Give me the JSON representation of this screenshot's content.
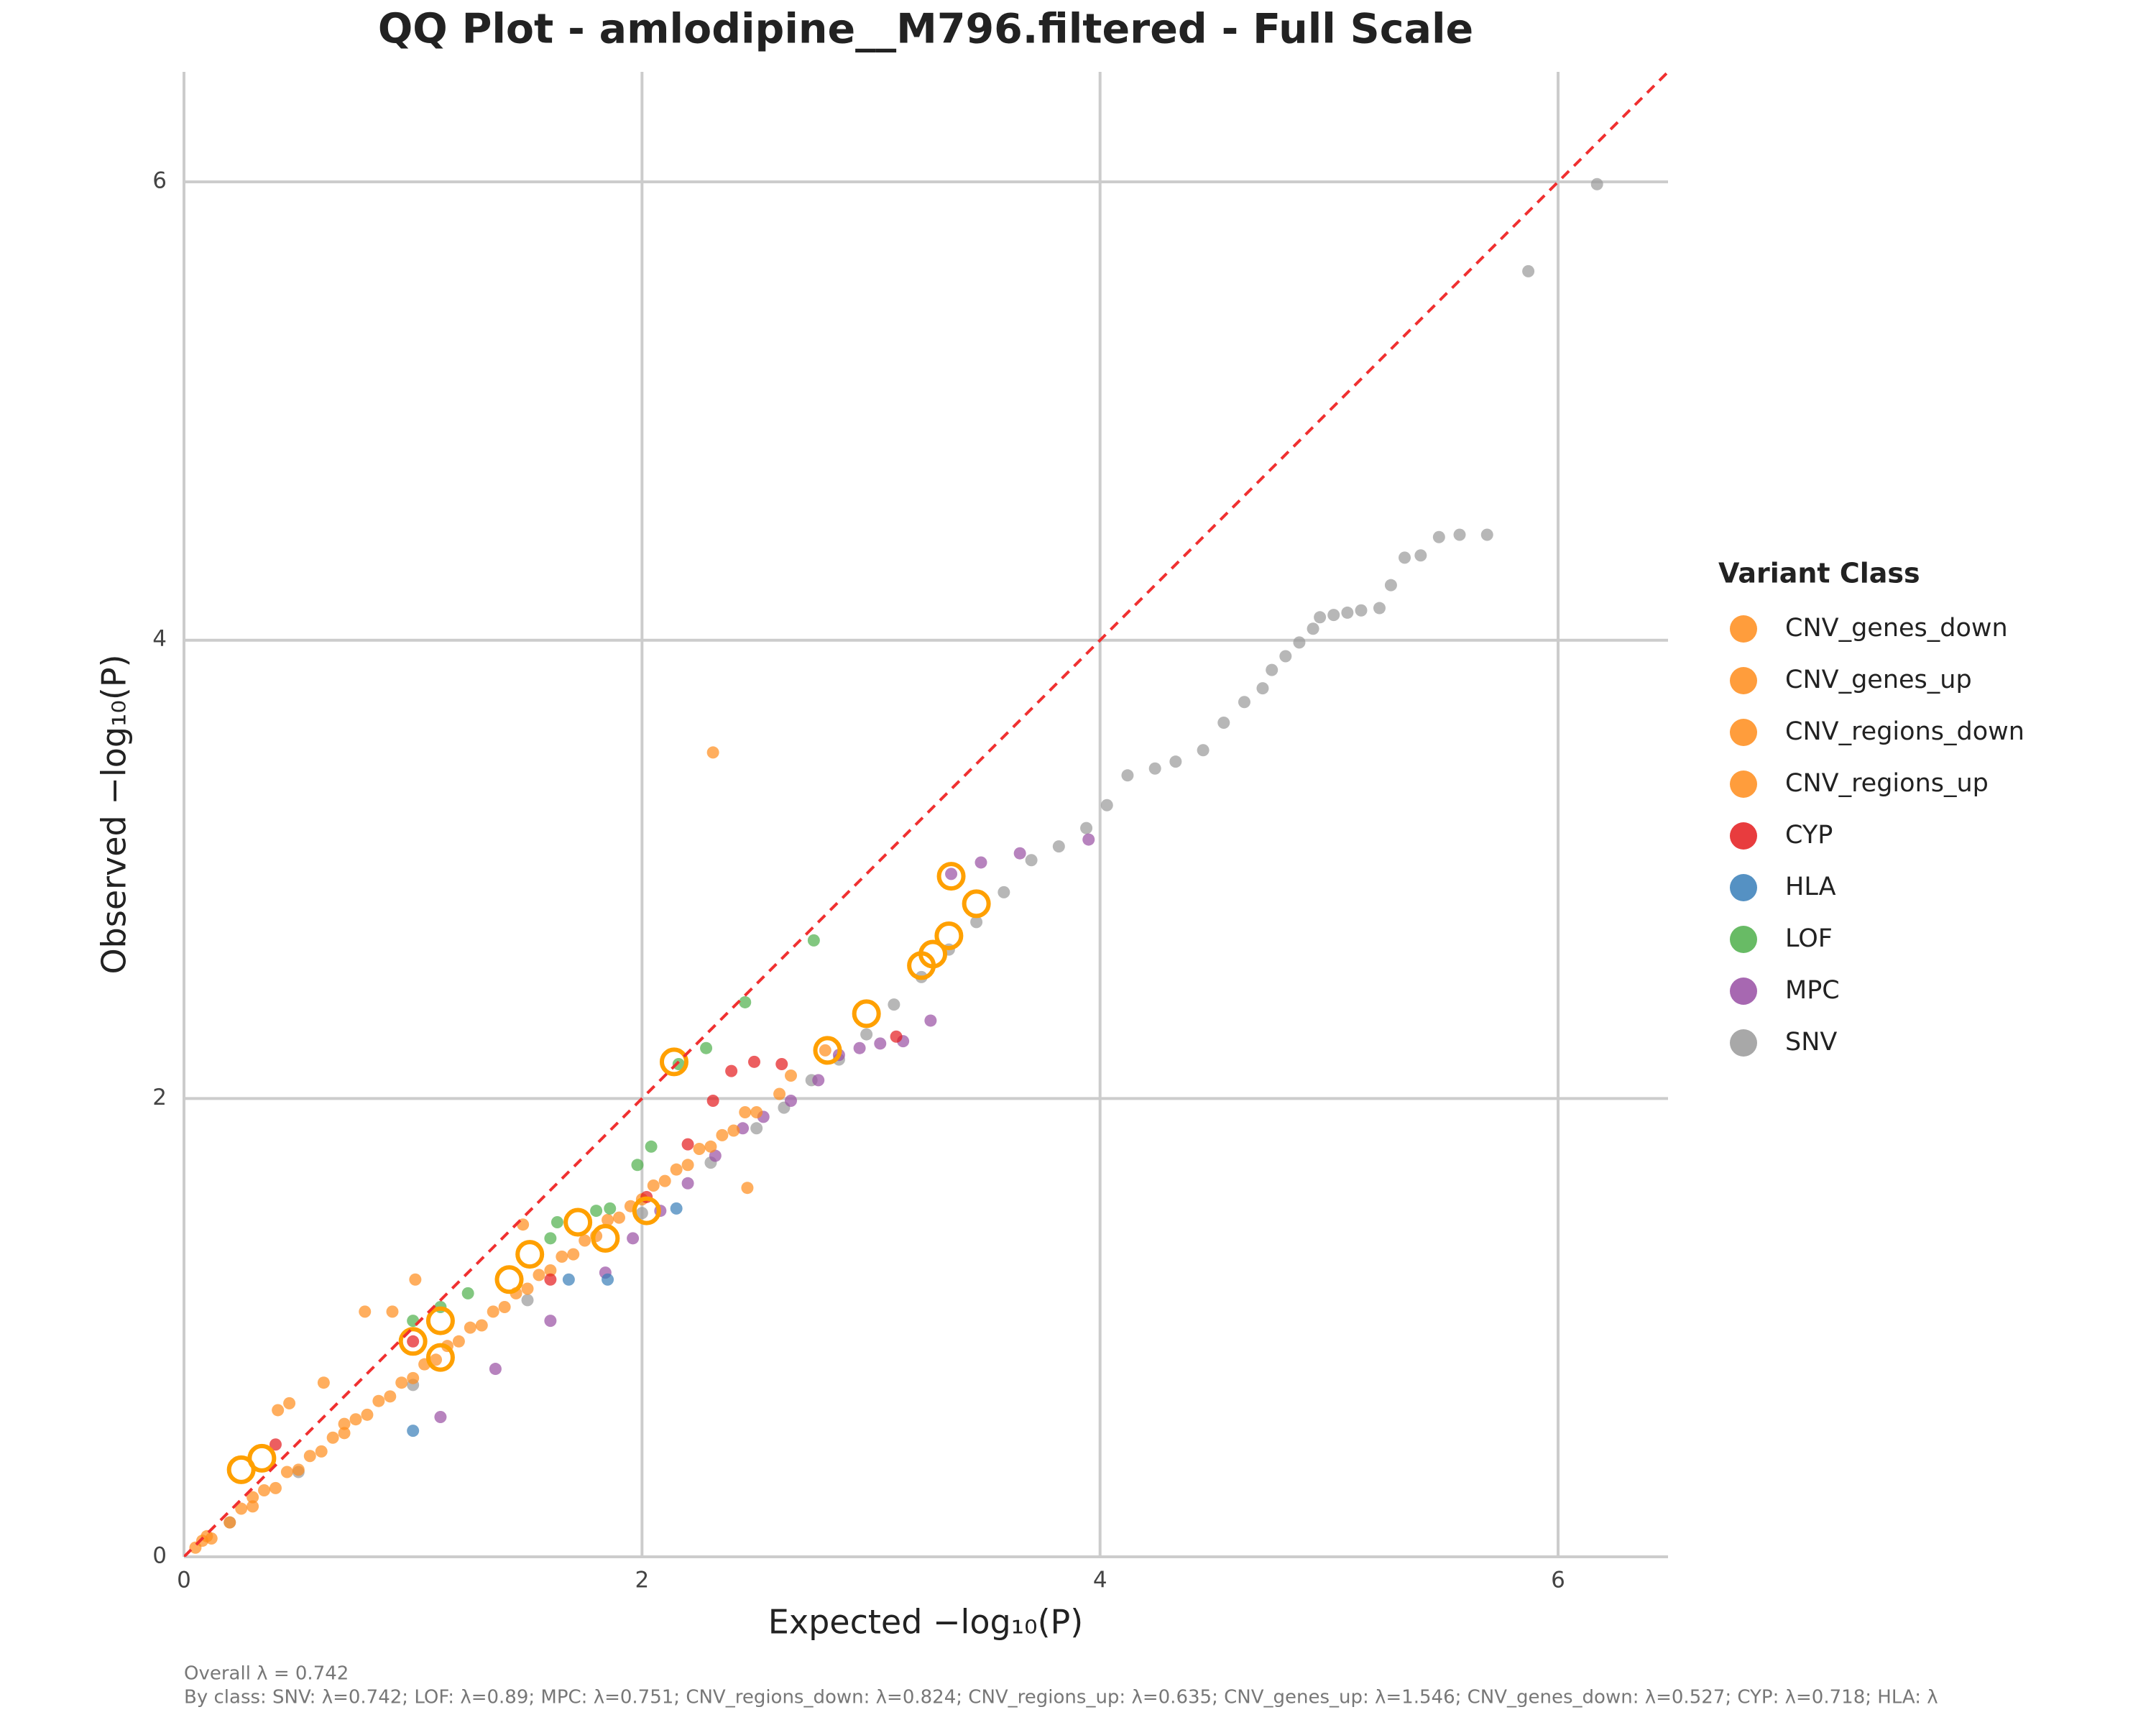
{
  "chart_data": {
    "type": "scatter",
    "title": "QQ Plot - amlodipine__M796.filtered - Full Scale",
    "x_label": "Expected −log₁₀(P)",
    "y_label": "Observed −log₁₀(P)",
    "legend_title": "Variant Class",
    "legend": "right",
    "grid": true,
    "diagonal": true,
    "diagonal_color": "#f03030",
    "xlim": [
      0,
      6.48
    ],
    "ylim": [
      0,
      6.48
    ],
    "xticks": [
      0,
      2,
      4,
      6
    ],
    "yticks": [
      0,
      2,
      4,
      6
    ],
    "notes": [
      "Overall λ = 0.742",
      "By class: SNV: λ=0.742; LOF: λ=0.89; MPC: λ=0.751; CNV_regions_down: λ=0.824; CNV_regions_up: λ=0.635; CNV_genes_up: λ=1.546; CNV_genes_down: λ=0.527; CYP: λ=0.718; HLA: λ"
    ],
    "series": [
      {
        "name": "SNV",
        "color": "#999999",
        "x": [
          6.17,
          5.87,
          5.69,
          5.57,
          5.48,
          5.4,
          5.33,
          5.27,
          5.22,
          5.14,
          5.08,
          5.02,
          4.96,
          4.93,
          4.87,
          4.81,
          4.75,
          4.71,
          4.63,
          4.54,
          4.45,
          4.33,
          4.24,
          4.12,
          4.03,
          3.94,
          3.82,
          3.7,
          3.58,
          3.46,
          3.34,
          3.22,
          3.1,
          2.98,
          2.86,
          2.74,
          2.62,
          2.5,
          2.3,
          2.0,
          1.5,
          1.0,
          0.5,
          0.2
        ],
        "y": [
          5.99,
          5.61,
          4.46,
          4.46,
          4.45,
          4.37,
          4.36,
          4.24,
          4.14,
          4.13,
          4.12,
          4.11,
          4.1,
          4.05,
          3.99,
          3.93,
          3.87,
          3.79,
          3.73,
          3.64,
          3.52,
          3.47,
          3.44,
          3.41,
          3.28,
          3.18,
          3.1,
          3.04,
          2.9,
          2.77,
          2.65,
          2.53,
          2.41,
          2.28,
          2.17,
          2.08,
          1.96,
          1.87,
          1.72,
          1.5,
          1.12,
          0.75,
          0.37,
          0.15
        ]
      },
      {
        "name": "MPC",
        "color": "#984ea3",
        "x": [
          3.95,
          3.65,
          3.48,
          3.35,
          3.26,
          3.14,
          3.04,
          2.95,
          2.86,
          2.77,
          2.65,
          2.53,
          2.44,
          2.32,
          2.2,
          2.08,
          1.96,
          1.84,
          1.6,
          1.36,
          1.12
        ],
        "y": [
          3.13,
          3.07,
          3.03,
          2.98,
          2.34,
          2.25,
          2.24,
          2.22,
          2.19,
          2.08,
          1.99,
          1.92,
          1.87,
          1.75,
          1.63,
          1.51,
          1.39,
          1.24,
          1.03,
          0.82,
          0.61
        ]
      },
      {
        "name": "CNV_genes_down",
        "color": "#ff8c1a",
        "x": [
          0.05,
          0.12,
          0.2,
          0.3,
          0.4,
          0.5,
          0.6,
          0.7,
          0.8,
          0.9,
          1.0,
          1.1,
          1.2,
          1.3,
          1.4,
          1.5,
          1.6,
          1.7,
          1.8,
          1.9,
          2.0,
          2.1,
          2.2,
          2.3,
          2.4,
          2.5,
          2.6
        ],
        "y": [
          0.04,
          0.08,
          0.15,
          0.22,
          0.3,
          0.38,
          0.46,
          0.54,
          0.62,
          0.7,
          0.78,
          0.86,
          0.94,
          1.01,
          1.09,
          1.17,
          1.25,
          1.32,
          1.4,
          1.48,
          1.56,
          1.64,
          1.71,
          1.79,
          1.86,
          1.94,
          2.02
        ]
      },
      {
        "name": "CNV_genes_up",
        "color": "#ff8c1a",
        "x": [
          0.08,
          0.25,
          0.45,
          0.65,
          0.85,
          1.05,
          1.25,
          1.45,
          1.65,
          1.85,
          2.05,
          2.25,
          2.45,
          2.65,
          2.8
        ],
        "y": [
          0.07,
          0.21,
          0.37,
          0.52,
          0.68,
          0.84,
          1.0,
          1.15,
          1.31,
          1.47,
          1.62,
          1.78,
          1.94,
          2.1,
          2.21
        ]
      },
      {
        "name": "CNV_regions_down",
        "color": "#ff8c1a",
        "x": [
          0.1,
          0.35,
          0.55,
          0.75,
          0.95,
          1.15,
          1.35,
          1.55,
          1.75,
          1.95,
          2.15,
          2.35
        ],
        "y": [
          0.09,
          0.29,
          0.44,
          0.6,
          0.76,
          0.92,
          1.07,
          1.23,
          1.38,
          1.53,
          1.69,
          1.84
        ]
      },
      {
        "name": "CNV_regions_up",
        "color": "#ff8c1a",
        "x": [
          2.31,
          2.46,
          1.48,
          1.01,
          0.91,
          0.79,
          0.61,
          0.46,
          0.41,
          0.3,
          0.7
        ],
        "y": [
          3.51,
          1.61,
          1.45,
          1.21,
          1.07,
          1.07,
          0.76,
          0.67,
          0.64,
          0.26,
          0.58
        ]
      },
      {
        "name": "CYP",
        "color": "#e41a1c",
        "x": [
          3.11,
          2.61,
          2.49,
          2.39,
          2.31,
          2.2,
          2.02,
          1.6,
          1.0,
          0.4
        ],
        "y": [
          2.27,
          2.15,
          2.16,
          2.12,
          1.99,
          1.8,
          1.57,
          1.21,
          0.94,
          0.49
        ]
      },
      {
        "name": "HLA",
        "color": "#377eb8",
        "x": [
          2.15,
          1.85,
          1.68,
          1.0
        ],
        "y": [
          1.52,
          1.21,
          1.21,
          0.55
        ]
      },
      {
        "name": "LOF",
        "color": "#4daf4a",
        "x": [
          2.75,
          2.45,
          2.28,
          2.16,
          2.04,
          1.98,
          1.86,
          1.8,
          1.63,
          1.6,
          1.24,
          1.12,
          1.0
        ],
        "y": [
          2.69,
          2.42,
          2.22,
          2.15,
          1.79,
          1.71,
          1.52,
          1.51,
          1.46,
          1.39,
          1.15,
          1.09,
          1.03
        ]
      },
      {
        "color": "#ffa000",
        "marker": "ring",
        "x": [
          3.35,
          2.14,
          3.46,
          3.34,
          3.27,
          3.22,
          2.98,
          2.81,
          2.02,
          1.84,
          1.72,
          1.51,
          1.42,
          1.12,
          1.12,
          1.0,
          0.34,
          0.25
        ],
        "y": [
          2.97,
          2.16,
          2.85,
          2.71,
          2.63,
          2.58,
          2.37,
          2.21,
          1.51,
          1.39,
          1.46,
          1.32,
          1.21,
          0.87,
          1.03,
          0.94,
          0.43,
          0.38
        ]
      }
    ],
    "legend_order": [
      "CNV_genes_down",
      "CNV_genes_up",
      "CNV_regions_down",
      "CNV_regions_up",
      "CYP",
      "HLA",
      "LOF",
      "MPC",
      "SNV"
    ]
  }
}
